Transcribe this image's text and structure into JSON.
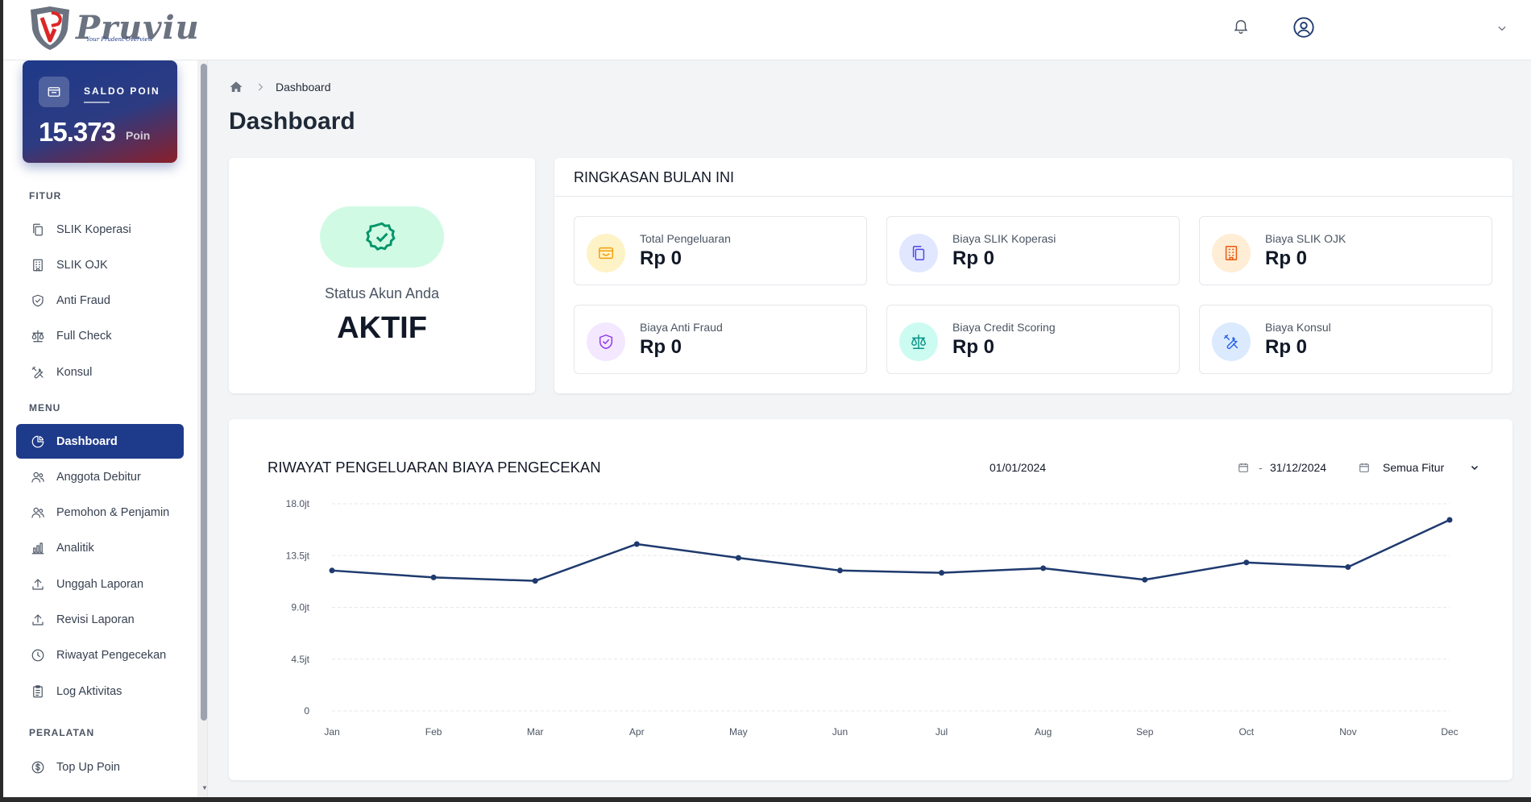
{
  "app": {
    "brand": "Pruviu",
    "tagline": "Your Prudent Overview"
  },
  "sidebar": {
    "saldo": {
      "label": "SALDO POIN",
      "value": "15.373",
      "unit": "Poin"
    },
    "sections": {
      "fitur": "FITUR",
      "menu": "MENU",
      "peralatan": "PERALATAN"
    },
    "fitur_items": [
      {
        "label": "SLIK Koperasi",
        "icon": "files-icon"
      },
      {
        "label": "SLIK OJK",
        "icon": "building-icon"
      },
      {
        "label": "Anti Fraud",
        "icon": "shield-check-icon"
      },
      {
        "label": "Full Check",
        "icon": "scale-icon"
      },
      {
        "label": "Konsul",
        "icon": "tools-icon"
      }
    ],
    "menu_items": [
      {
        "label": "Dashboard",
        "icon": "pie-chart-icon",
        "active": true
      },
      {
        "label": "Anggota Debitur",
        "icon": "users-icon"
      },
      {
        "label": "Pemohon & Penjamin",
        "icon": "users-icon"
      },
      {
        "label": "Analitik",
        "icon": "bar-chart-icon"
      },
      {
        "label": "Unggah Laporan",
        "icon": "upload-icon"
      },
      {
        "label": "Revisi Laporan",
        "icon": "upload-icon"
      },
      {
        "label": "Riwayat Pengecekan",
        "icon": "clock-icon"
      },
      {
        "label": "Log Aktivitas",
        "icon": "clipboard-icon"
      }
    ],
    "peralatan_items": [
      {
        "label": "Top Up Poin",
        "icon": "dollar-icon"
      }
    ]
  },
  "breadcrumb": {
    "current": "Dashboard"
  },
  "page": {
    "title": "Dashboard"
  },
  "status": {
    "label": "Status Akun Anda",
    "value": "AKTIF"
  },
  "summary": {
    "title": "RINGKASAN BULAN INI",
    "stats": [
      {
        "label": "Total Pengeluaran",
        "value": "Rp 0",
        "icon": "wallet-icon",
        "color": "#f59e0b",
        "bg": "#fef3c7"
      },
      {
        "label": "Biaya SLIK Koperasi",
        "value": "Rp 0",
        "icon": "files-icon",
        "color": "#4f46e5",
        "bg": "#e0e7ff"
      },
      {
        "label": "Biaya SLIK OJK",
        "value": "Rp 0",
        "icon": "building-icon",
        "color": "#ea580c",
        "bg": "#ffedd5"
      },
      {
        "label": "Biaya Anti Fraud",
        "value": "Rp 0",
        "icon": "shield-check-icon",
        "color": "#9333ea",
        "bg": "#f3e8ff"
      },
      {
        "label": "Biaya Credit Scoring",
        "value": "Rp 0",
        "icon": "scale-icon",
        "color": "#0d9488",
        "bg": "#ccfbf1"
      },
      {
        "label": "Biaya Konsul",
        "value": "Rp 0",
        "icon": "tools-icon",
        "color": "#2563eb",
        "bg": "#dbeafe"
      }
    ]
  },
  "history": {
    "title": "RIWAYAT PENGELUARAN BIAYA PENGECEKAN",
    "date_from": "01/01/2024",
    "date_sep": "-",
    "date_to": "31/12/2024",
    "filter": "Semua Fitur"
  },
  "chart_data": {
    "type": "line",
    "categories": [
      "Jan",
      "Feb",
      "Mar",
      "Apr",
      "May",
      "Jun",
      "Jul",
      "Aug",
      "Sep",
      "Oct",
      "Nov",
      "Dec"
    ],
    "values": [
      12.2,
      11.6,
      11.3,
      14.5,
      13.3,
      12.2,
      12.0,
      12.4,
      11.4,
      12.9,
      12.5,
      16.6
    ],
    "yticks": [
      0,
      4.5,
      9.0,
      13.5,
      18.0
    ],
    "ytick_labels": [
      "0",
      "4.5jt",
      "9.0jt",
      "13.5jt",
      "18.0jt"
    ],
    "ylim": [
      0,
      18
    ],
    "color": "#1e3a6e",
    "grid": true
  }
}
